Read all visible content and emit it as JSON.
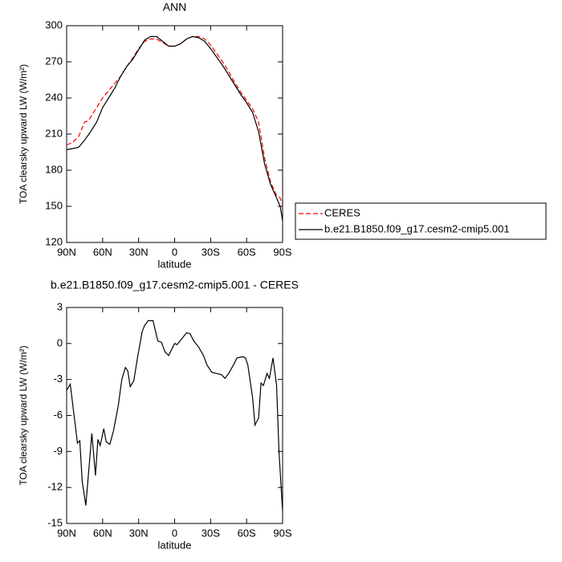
{
  "chart_data": [
    {
      "type": "line",
      "title": "ANN",
      "ylabel": "TOA clearsky upward LW (W/m²)",
      "xlabel": "latitude",
      "xlim": [
        90,
        -90
      ],
      "xticks": [
        {
          "value": 90,
          "label": "90N"
        },
        {
          "value": 60,
          "label": "60N"
        },
        {
          "value": 30,
          "label": "30N"
        },
        0,
        {
          "value": -30,
          "label": "30S"
        },
        {
          "value": -60,
          "label": "60S"
        },
        {
          "value": -90,
          "label": "90S"
        }
      ],
      "ylim": [
        120,
        300
      ],
      "yticks": [
        120,
        150,
        180,
        210,
        240,
        270,
        300
      ],
      "legend": "right",
      "series": [
        {
          "name": "CERES",
          "color": "#ff0000",
          "dashed": true,
          "x": [
            90,
            85,
            80,
            77,
            75,
            72,
            70,
            65,
            60,
            55,
            50,
            45,
            40,
            35,
            30,
            25,
            20,
            15,
            10,
            5,
            0,
            -5,
            -10,
            -15,
            -20,
            -25,
            -30,
            -35,
            -40,
            -45,
            -50,
            -55,
            -60,
            -65,
            -70,
            -75,
            -80,
            -85,
            -88,
            -90
          ],
          "values": [
            201,
            203,
            208,
            215,
            220,
            221,
            224,
            232,
            240,
            246,
            252,
            258,
            266,
            273,
            281,
            287,
            289,
            289,
            286,
            283,
            283,
            285,
            289,
            291,
            291,
            289,
            284,
            277,
            270,
            262,
            253,
            245,
            238,
            231,
            220,
            190,
            170,
            159,
            157,
            151
          ]
        },
        {
          "name": "b.e21.B1850.f09_g17.cesm2-cmip5.001",
          "color": "#000000",
          "dashed": false,
          "x": [
            90,
            85,
            80,
            75,
            70,
            65,
            60,
            55,
            50,
            45,
            40,
            35,
            30,
            25,
            20,
            15,
            10,
            5,
            0,
            -5,
            -10,
            -15,
            -20,
            -25,
            -30,
            -35,
            -40,
            -45,
            -50,
            -55,
            -60,
            -65,
            -70,
            -75,
            -80,
            -85,
            -88,
            -90
          ],
          "values": [
            197,
            198,
            199,
            205,
            212,
            220,
            232,
            240,
            248,
            258,
            266,
            272,
            280,
            288,
            291,
            291,
            287,
            283,
            283,
            285,
            289,
            291,
            290,
            287,
            281,
            274,
            267,
            259,
            251,
            243,
            236,
            228,
            212,
            185,
            168,
            157,
            150,
            138
          ]
        }
      ]
    },
    {
      "type": "line",
      "title": "b.e21.B1850.f09_g17.cesm2-cmip5.001 - CERES",
      "ylabel": "TOA clearsky upward LW (W/m²)",
      "xlabel": "latitude",
      "xlim": [
        90,
        -90
      ],
      "xticks": [
        {
          "value": 90,
          "label": "90N"
        },
        {
          "value": 60,
          "label": "60N"
        },
        {
          "value": 30,
          "label": "30N"
        },
        0,
        {
          "value": -30,
          "label": "30S"
        },
        {
          "value": -60,
          "label": "60S"
        },
        {
          "value": -90,
          "label": "90S"
        }
      ],
      "ylim": [
        -15,
        3
      ],
      "yticks": [
        -15,
        -12,
        -9,
        -6,
        -3,
        0,
        3
      ],
      "color": "#000000",
      "x": [
        90,
        87,
        81,
        79,
        77,
        74,
        69,
        66,
        64,
        62,
        59,
        57,
        54,
        51,
        47,
        44,
        41,
        39,
        37,
        34,
        31,
        27,
        25,
        22,
        18,
        14,
        11,
        8,
        5,
        3,
        0,
        -2,
        -6,
        -10,
        -13,
        -16,
        -20,
        -24,
        -27,
        -31,
        -35,
        -39,
        -42,
        -45,
        -49,
        -52,
        -57,
        -59,
        -61,
        -65,
        -67,
        -70,
        -72,
        -74,
        -77,
        -79,
        -82,
        -85,
        -87,
        -90
      ],
      "values": [
        -3.9,
        -3.4,
        -8.3,
        -8.1,
        -11.5,
        -13.5,
        -7.5,
        -11,
        -8,
        -8.5,
        -7.1,
        -8.2,
        -8.4,
        -7.3,
        -5.2,
        -3,
        -2,
        -2.3,
        -3.6,
        -3.1,
        -1.2,
        1,
        1.5,
        1.9,
        1.9,
        0.2,
        0.1,
        -0.7,
        -1,
        -0.6,
        0,
        -0.1,
        0.4,
        0.9,
        0.8,
        0.2,
        -0.3,
        -1,
        -1.8,
        -2.4,
        -2.5,
        -2.6,
        -2.9,
        -2.5,
        -1.8,
        -1.2,
        -1.1,
        -1.2,
        -1.8,
        -4.5,
        -6.8,
        -6.2,
        -3.3,
        -3.5,
        -2.5,
        -2.9,
        -1.2,
        -3.5,
        -9,
        -14
      ]
    }
  ]
}
